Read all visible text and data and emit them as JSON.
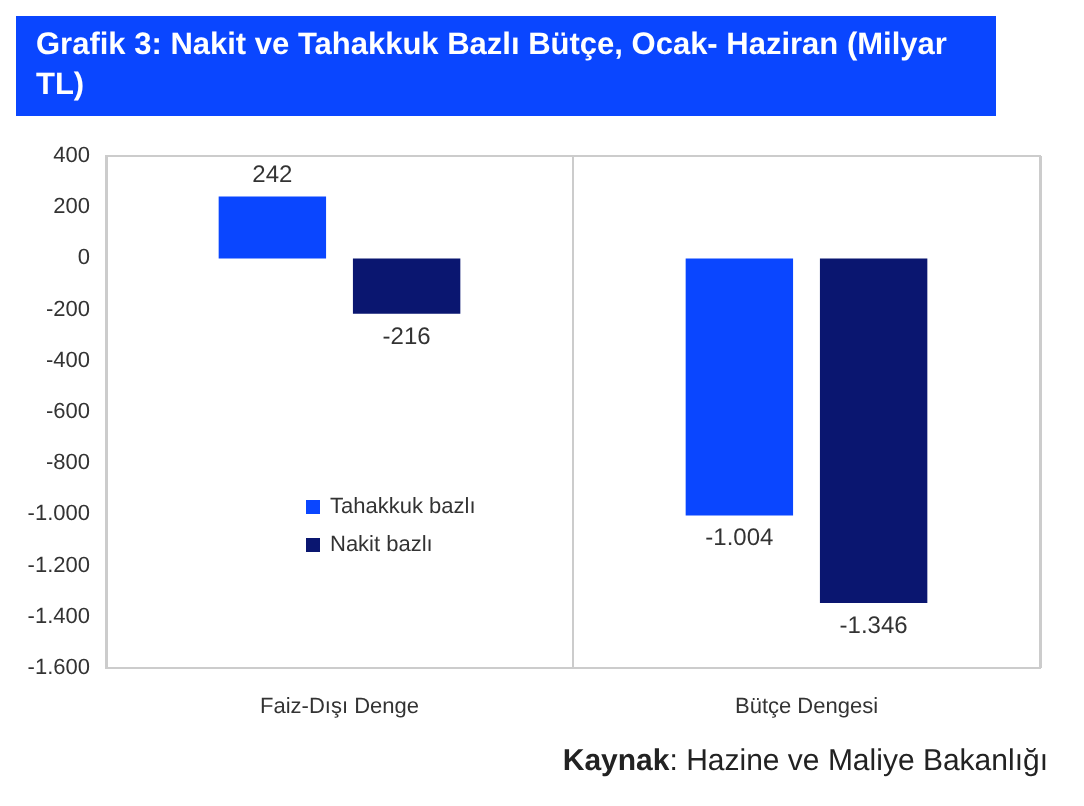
{
  "chart_data": {
    "type": "bar",
    "title": "Grafik 3: Nakit ve Tahakkuk Bazlı Bütçe, Ocak- Haziran (Milyar TL)",
    "categories": [
      "Faiz-Dışı Denge",
      "Bütçe Dengesi"
    ],
    "series": [
      {
        "name": "Tahakkuk bazlı",
        "color": "#0a46ff",
        "values": [
          242,
          -1004
        ],
        "value_labels": [
          "242",
          "-1.004"
        ]
      },
      {
        "name": "Nakit bazlı",
        "color": "#0a1670",
        "values": [
          -216,
          -1346
        ],
        "value_labels": [
          "-216",
          "-1.346"
        ]
      }
    ],
    "ylim": [
      -1600,
      400
    ],
    "yticks": [
      {
        "value": -1600,
        "label": "-1.600"
      },
      {
        "value": -1400,
        "label": "-1.400"
      },
      {
        "value": -1200,
        "label": "-1.200"
      },
      {
        "value": -1000,
        "label": "-1.000"
      },
      -800,
      -600,
      -400,
      -200,
      0,
      200,
      400
    ],
    "grid": "x",
    "legend": "left",
    "annotations": [
      "Kaynak: Hazine ve Maliye Bakanlığı"
    ]
  }
}
